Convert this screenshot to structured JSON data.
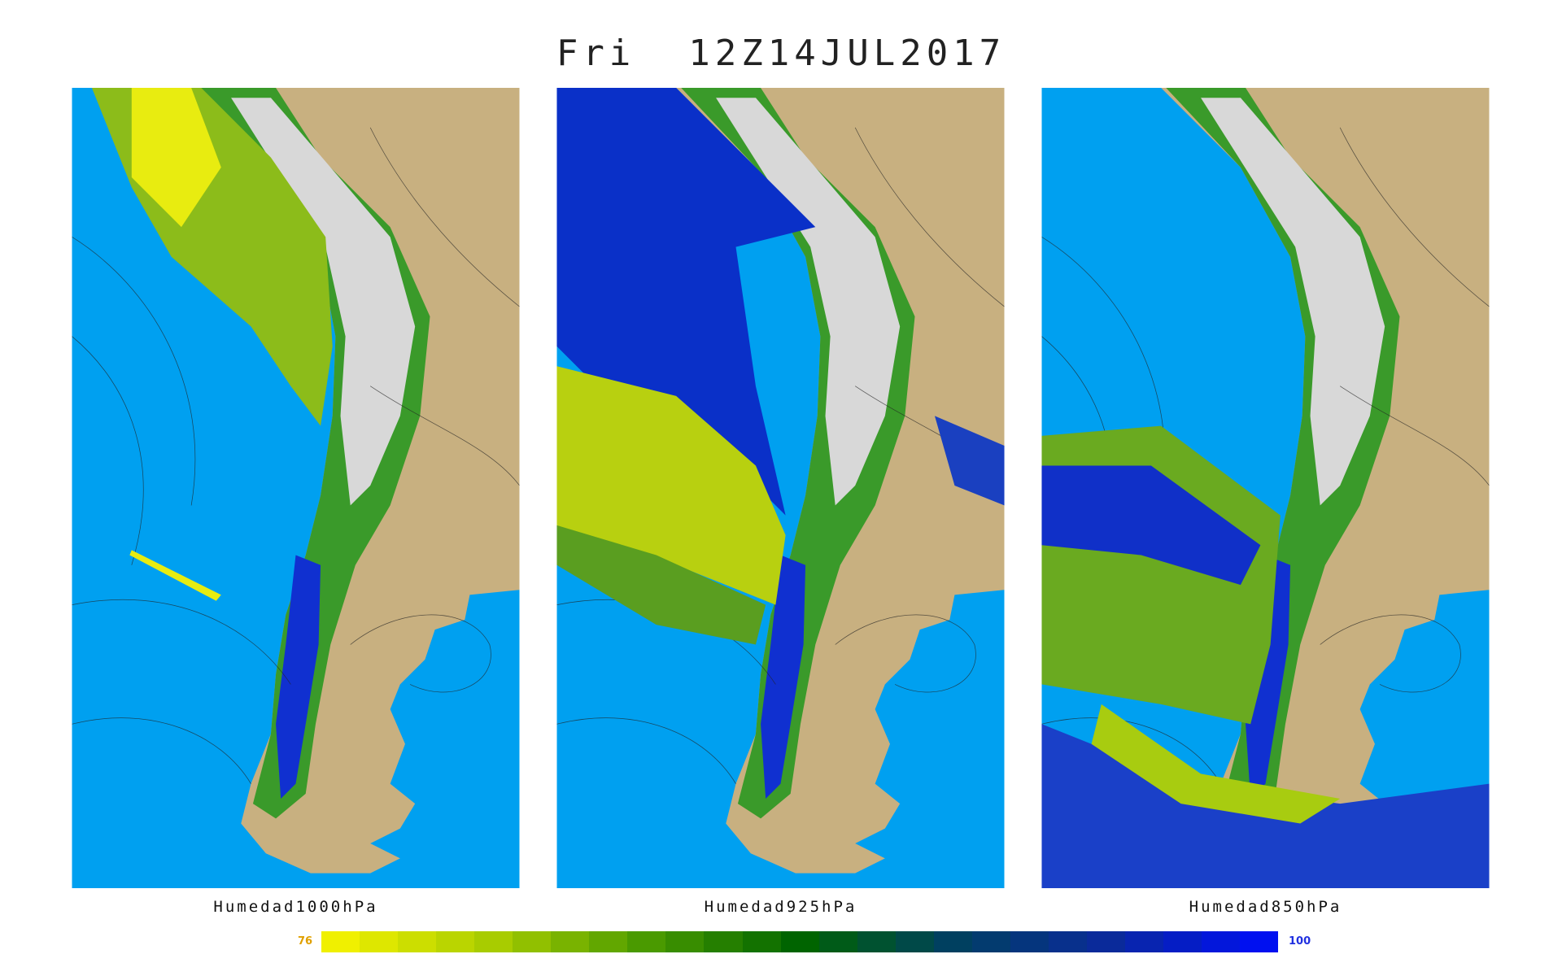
{
  "title": "Fri  12Z14JUL2017",
  "panels": [
    {
      "label": "Humedad1000hPa"
    },
    {
      "label": "Humedad925hPa"
    },
    {
      "label": "Humedad850hPa"
    }
  ],
  "colorbar": {
    "min": 76,
    "max": 100,
    "colors": [
      "#f0f000",
      "#a8cc00",
      "#4a9a00",
      "#006400",
      "#004060",
      "#0a2a9a",
      "#0010f0"
    ]
  }
}
